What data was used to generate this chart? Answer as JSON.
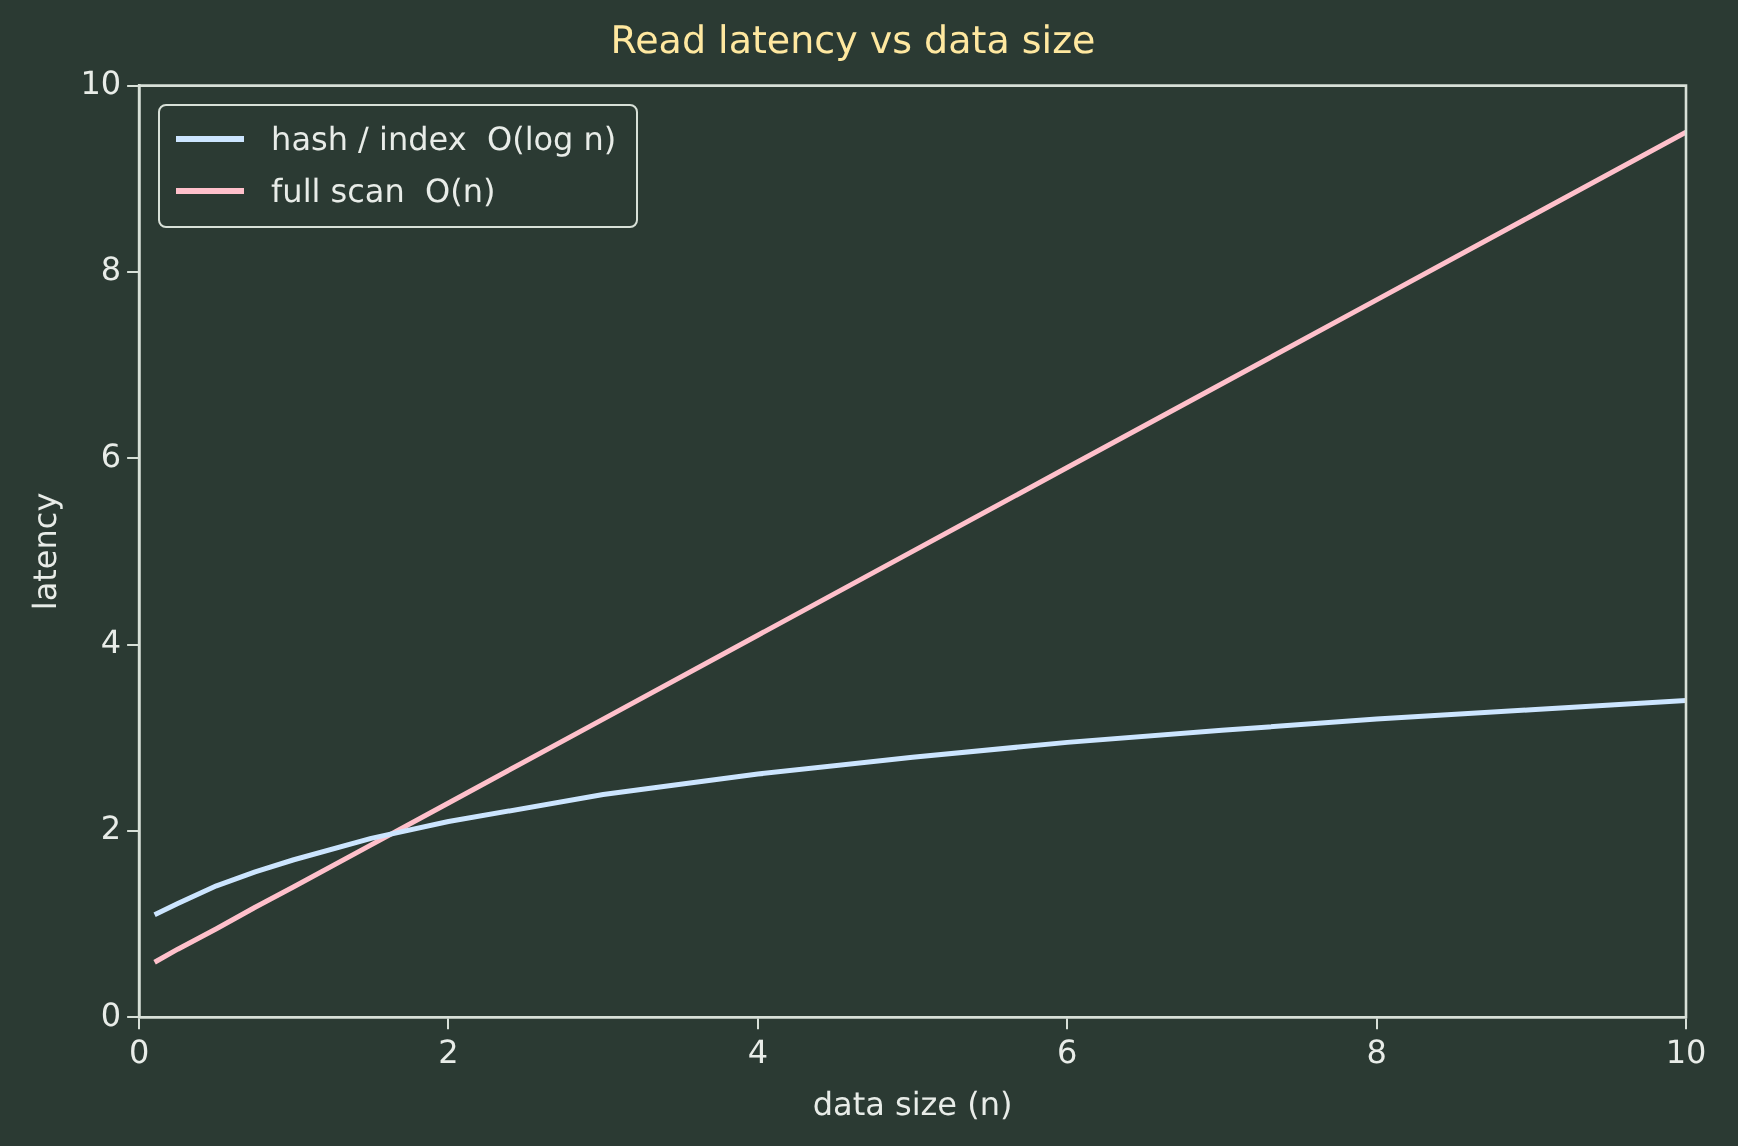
{
  "chart_data": {
    "type": "line",
    "title": "Read latency vs data size",
    "xlabel": "data size (n)",
    "ylabel": "latency",
    "xlim": [
      0,
      10
    ],
    "xticks": [
      0,
      2,
      4,
      6,
      8,
      10
    ],
    "ylim": [
      0,
      10
    ],
    "yticks": [
      0,
      2,
      4,
      6,
      8,
      10
    ],
    "grid": false,
    "legend": "top left",
    "marker": "none",
    "line_style": "solid",
    "series": [
      {
        "name": "hash / index  O(log n)",
        "color": "#cce5ff",
        "x": [
          0.1,
          0.25,
          0.5,
          0.75,
          1,
          1.5,
          2,
          3,
          4,
          5,
          6,
          7,
          8,
          9,
          10
        ],
        "values": [
          1.1,
          1.22,
          1.41,
          1.56,
          1.69,
          1.92,
          2.1,
          2.39,
          2.61,
          2.79,
          2.95,
          3.08,
          3.2,
          3.3,
          3.4
        ]
      },
      {
        "name": "full scan  O(n)",
        "color": "#ffc0cb",
        "x": [
          0.1,
          0.25,
          0.5,
          0.75,
          1,
          1.5,
          2,
          3,
          4,
          5,
          6,
          7,
          8,
          9,
          10
        ],
        "values": [
          0.59,
          0.73,
          0.95,
          1.18,
          1.4,
          1.85,
          2.3,
          3.2,
          4.1,
          5.0,
          5.9,
          6.8,
          7.7,
          8.6,
          9.5
        ]
      }
    ]
  }
}
